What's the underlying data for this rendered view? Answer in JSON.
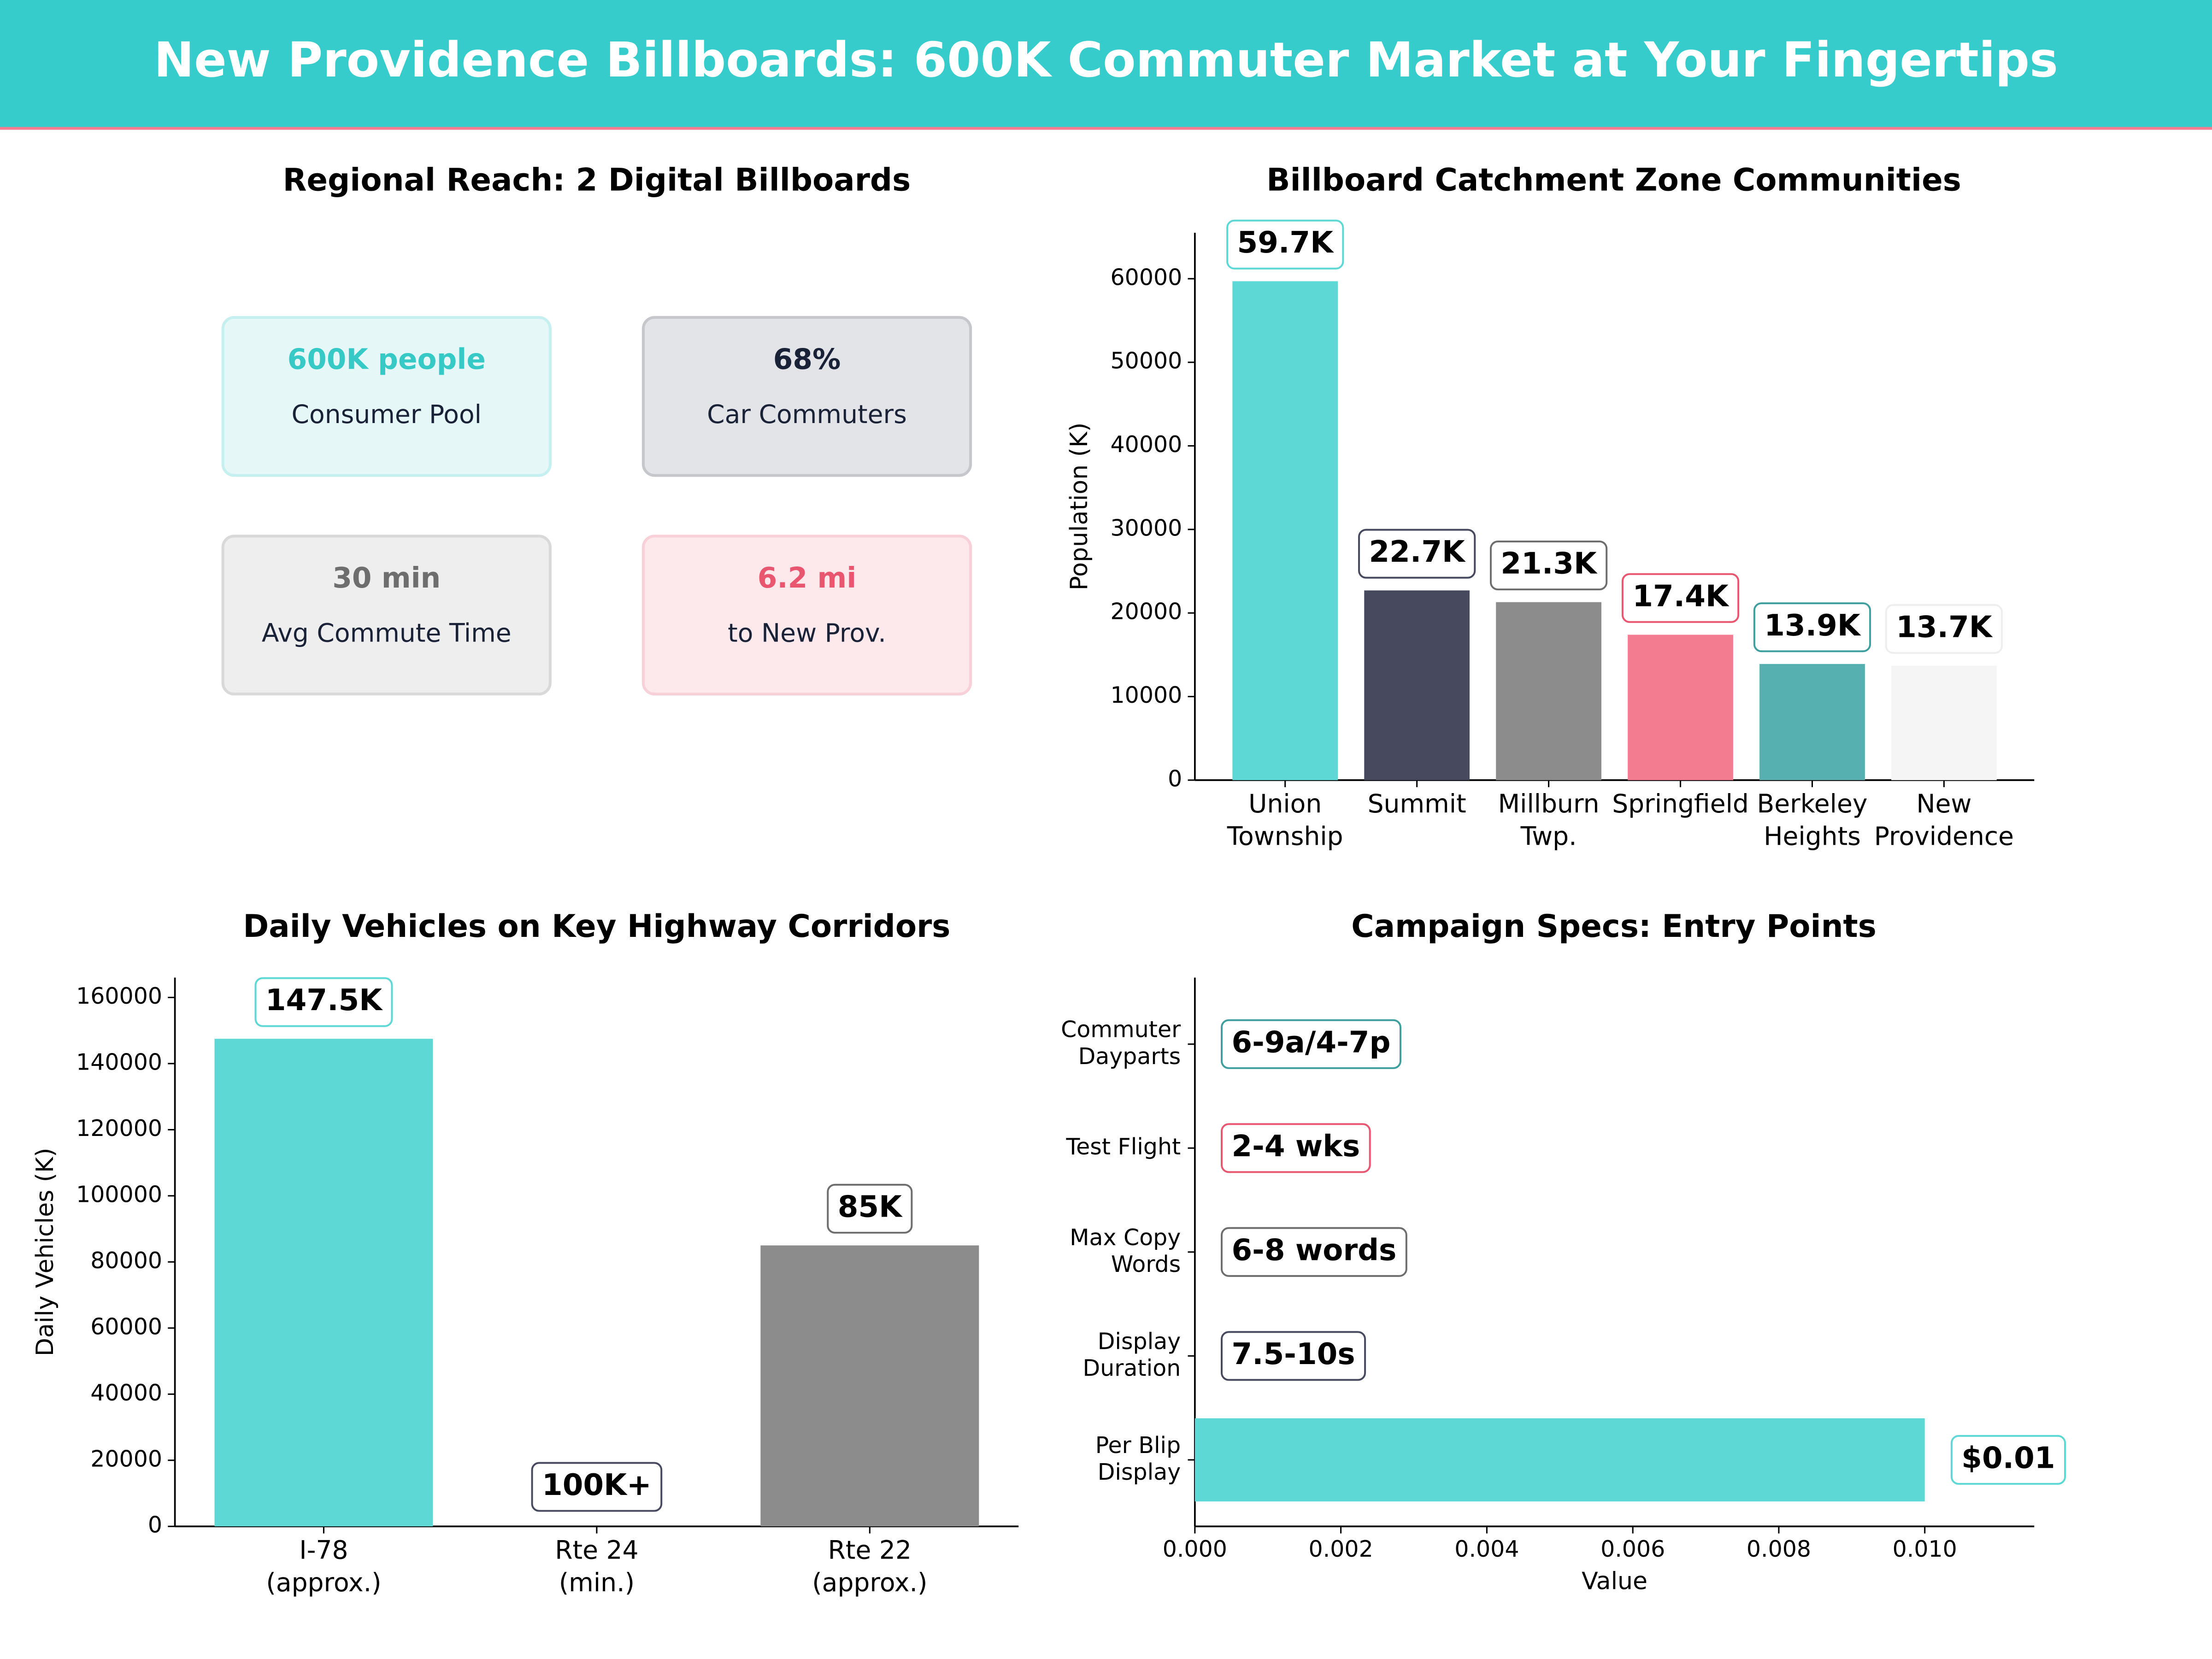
{
  "title": "New Providence Billboards: 600K Commuter Market at Your Fingertips",
  "kpi_panel": {
    "title": "Regional Reach: 2 Digital Billboards",
    "cards": [
      {
        "value": "600K people",
        "label": "Consumer Pool",
        "color": "#36c9c6",
        "background": "#e5f7f7",
        "border": "#c6f0ef"
      },
      {
        "value": "68%",
        "label": "Car Commuters",
        "color": "#1a2238",
        "background": "#e3e4e8",
        "border": "#c6c7cc"
      },
      {
        "value": "30 min",
        "label": "Avg Commute Time",
        "color": "#6e6e6e",
        "background": "#eeeeee",
        "border": "#d9d9d9"
      },
      {
        "value": "6.2 mi",
        "label": "to New Prov.",
        "color": "#e8566f",
        "background": "#fde9ec",
        "border": "#f8d0d7"
      }
    ]
  },
  "chart_data": [
    {
      "type": "bar",
      "title": "Billboard Catchment Zone Communities",
      "ylabel": "Population (K)",
      "categories": [
        "Union\nTownship",
        "Summit",
        "Millburn\nTwp.",
        "Springfield",
        "Berkeley\nHeights",
        "New\nProvidence"
      ],
      "values": [
        59700,
        22700,
        21300,
        17400,
        13900,
        13700
      ],
      "value_labels": [
        "59.7K",
        "22.7K",
        "21.3K",
        "17.4K",
        "13.9K",
        "13.7K"
      ],
      "colors": [
        "#5dd8d4",
        "#474a5e",
        "#8c8c8c",
        "#f47c91",
        "#56b0b0",
        "#f5f5f5"
      ],
      "label_border_colors": [
        "#5dd8d4",
        "#474a5e",
        "#6e6e6e",
        "#e8566f",
        "#3f9f9f",
        "#eeeeee"
      ],
      "ylim": [
        0,
        65500
      ],
      "yticks": [
        0,
        10000,
        20000,
        30000,
        40000,
        50000,
        60000
      ]
    },
    {
      "type": "bar",
      "title": "Daily Vehicles on Key Highway Corridors",
      "ylabel": "Daily Vehicles (K)",
      "categories": [
        "I-78\n(approx.)",
        "Rte 24\n(min.)",
        "Rte 22\n(approx.)"
      ],
      "values": [
        147500,
        null,
        85000
      ],
      "value_labels": [
        "147.5K",
        "100K+",
        "85K"
      ],
      "colors": [
        "#5dd8d4",
        "#474a5e",
        "#8c8c8c"
      ],
      "label_border_colors": [
        "#5dd8d4",
        "#474a5e",
        "#6e6e6e"
      ],
      "ylim": [
        0,
        166000
      ],
      "yticks": [
        0,
        20000,
        40000,
        60000,
        80000,
        100000,
        120000,
        140000,
        160000
      ]
    },
    {
      "type": "barh",
      "title": "Campaign Specs: Entry Points",
      "xlabel": "Value",
      "categories": [
        "Commuter\nDayparts",
        "Test Flight",
        "Max Copy\nWords",
        "Display\nDuration",
        "Per Blip\nDisplay"
      ],
      "values": [
        null,
        null,
        null,
        null,
        0.01
      ],
      "value_labels": [
        "6-9a/4-7p",
        "2-4 wks",
        "6-8 words",
        "7.5-10s",
        "$0.01"
      ],
      "color": "#5dd8d4",
      "label_border_colors": [
        "#3f9f9f",
        "#e8566f",
        "#6e6e6e",
        "#474a5e",
        "#5dd8d4"
      ],
      "xlim": [
        0,
        0.0115
      ],
      "xticks": [
        {
          "value": 0,
          "label": "0.000"
        },
        {
          "value": 0.002,
          "label": "0.002"
        },
        {
          "value": 0.004,
          "label": "0.004"
        },
        {
          "value": 0.006,
          "label": "0.006"
        },
        {
          "value": 0.008,
          "label": "0.008"
        },
        {
          "value": 0.01,
          "label": "0.010"
        }
      ]
    }
  ]
}
